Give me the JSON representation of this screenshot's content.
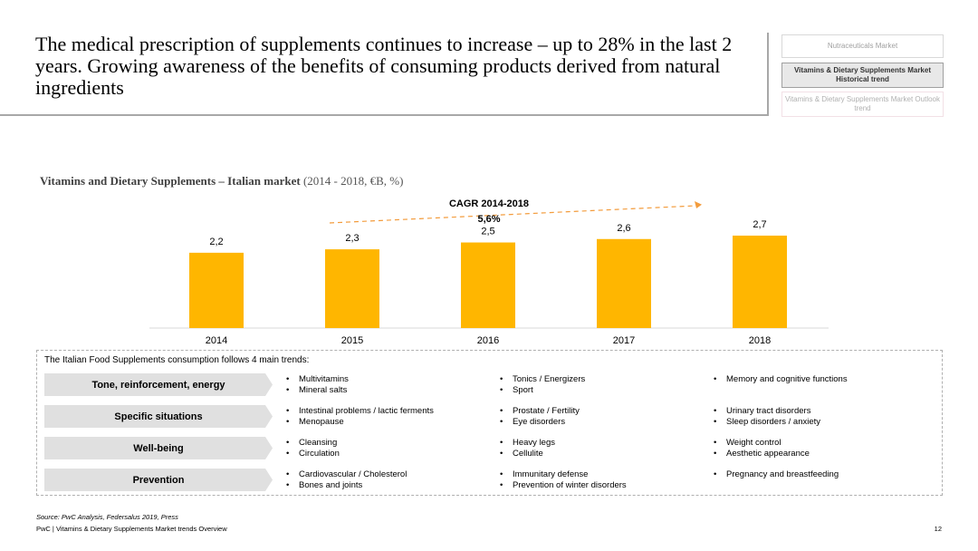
{
  "title": "The medical prescription of supplements continues to increase – up to 28% in the last 2 years. Growing awareness of the benefits of consuming products derived from natural ingredients",
  "nav": [
    {
      "label": "Nutraceuticals Market"
    },
    {
      "label": "Vitamins & Dietary Supplements Market Historical trend"
    },
    {
      "label": "Vitamins & Dietary Supplements Market Outlook trend"
    }
  ],
  "chart_title": {
    "bold": "Vitamins and Dietary Supplements – Italian market",
    "normal": " (2014 - 2018, €B, %)"
  },
  "chart_data": {
    "type": "bar",
    "title": "Vitamins and Dietary Supplements – Italian market (2014 - 2018, €B, %)",
    "categories": [
      "2014",
      "2015",
      "2016",
      "2017",
      "2018"
    ],
    "values": [
      2.2,
      2.3,
      2.5,
      2.6,
      2.7
    ],
    "value_labels": [
      "2,2",
      "2,3",
      "2,5",
      "2,6",
      "2,7"
    ],
    "ylim": [
      0,
      2.7
    ],
    "ylabel": "€B",
    "xlabel": "",
    "bar_color": "#FFB600",
    "annotation": {
      "label": "CAGR 2014-2018",
      "value": "5,6%",
      "arrow_color": "#F39C3D"
    }
  },
  "trends": {
    "intro": "The Italian Food Supplements consumption follows 4 main trends:",
    "rows": [
      {
        "category": "Tone, reinforcement, energy",
        "col1": [
          "Multivitamins",
          "Mineral salts"
        ],
        "col2": [
          "Tonics / Energizers",
          "Sport"
        ],
        "col3": [
          "Memory and cognitive functions"
        ]
      },
      {
        "category": "Specific situations",
        "col1": [
          "Intestinal problems / lactic ferments",
          "Menopause"
        ],
        "col2": [
          "Prostate / Fertility",
          "Eye disorders"
        ],
        "col3": [
          "Urinary tract disorders",
          "Sleep disorders / anxiety"
        ]
      },
      {
        "category": "Well-being",
        "col1": [
          "Cleansing",
          "Circulation"
        ],
        "col2": [
          "Heavy legs",
          "Cellulite"
        ],
        "col3": [
          "Weight control",
          "Aesthetic appearance"
        ]
      },
      {
        "category": "Prevention",
        "col1": [
          "Cardiovascular / Cholesterol",
          "Bones and joints"
        ],
        "col2": [
          "Immunitary defense",
          "Prevention of winter disorders"
        ],
        "col3": [
          "Pregnancy and breastfeeding"
        ]
      }
    ]
  },
  "source": "Source: PwC Analysis, Federsalus 2019, Press",
  "footer": "PwC | Vitamins & Dietary Supplements Market trends Overview",
  "page_number": "12"
}
